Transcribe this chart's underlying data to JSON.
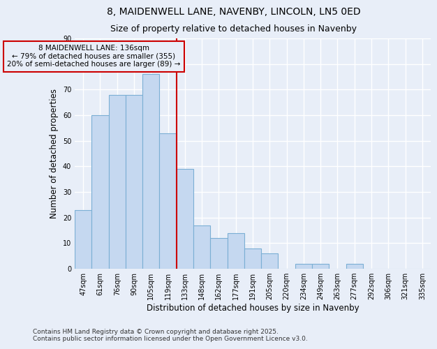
{
  "title": "8, MAIDENWELL LANE, NAVENBY, LINCOLN, LN5 0ED",
  "subtitle": "Size of property relative to detached houses in Navenby",
  "xlabel": "Distribution of detached houses by size in Navenby",
  "ylabel": "Number of detached properties",
  "categories": [
    "47sqm",
    "61sqm",
    "76sqm",
    "90sqm",
    "105sqm",
    "119sqm",
    "133sqm",
    "148sqm",
    "162sqm",
    "177sqm",
    "191sqm",
    "205sqm",
    "220sqm",
    "234sqm",
    "249sqm",
    "263sqm",
    "277sqm",
    "292sqm",
    "306sqm",
    "321sqm",
    "335sqm"
  ],
  "values": [
    23,
    60,
    68,
    68,
    76,
    53,
    39,
    17,
    12,
    14,
    8,
    6,
    0,
    2,
    2,
    0,
    2,
    0,
    0,
    0,
    0
  ],
  "bar_color": "#c5d8f0",
  "bar_edge_color": "#7bafd4",
  "property_line_index": 6,
  "property_line_color": "#cc0000",
  "annotation_text": "8 MAIDENWELL LANE: 136sqm\n← 79% of detached houses are smaller (355)\n20% of semi-detached houses are larger (89) →",
  "annotation_box_color": "#cc0000",
  "ylim": [
    0,
    90
  ],
  "yticks": [
    0,
    10,
    20,
    30,
    40,
    50,
    60,
    70,
    80,
    90
  ],
  "background_color": "#e8eef8",
  "grid_color": "#ffffff",
  "footer": "Contains HM Land Registry data © Crown copyright and database right 2025.\nContains public sector information licensed under the Open Government Licence v3.0.",
  "title_fontsize": 10,
  "subtitle_fontsize": 9,
  "xlabel_fontsize": 8.5,
  "ylabel_fontsize": 8.5,
  "tick_fontsize": 7,
  "annotation_fontsize": 7.5,
  "footer_fontsize": 6.5
}
